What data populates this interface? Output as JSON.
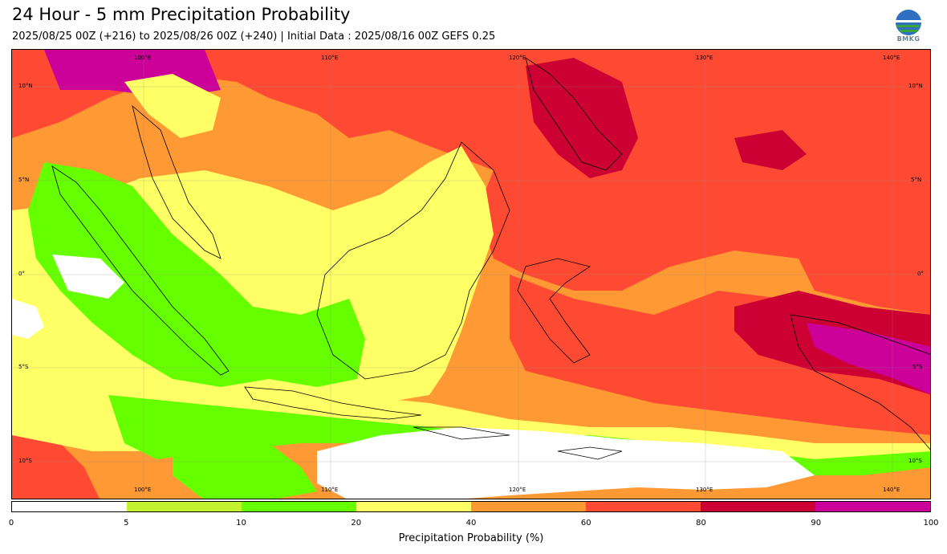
{
  "title": "24 Hour - 5 mm Precipitation Probability",
  "subtitle": "2025/08/25 00Z (+216) to 2025/08/26 00Z (+240) | Initial Data : 2025/08/16 00Z GEFS 0.25",
  "logo": {
    "text": "BMKG",
    "icon": "bmkg-logo-icon"
  },
  "map": {
    "lon_labels": [
      "100°E",
      "110°E",
      "120°E",
      "130°E",
      "140°E"
    ],
    "lat_labels": [
      "10°N",
      "5°N",
      "0°",
      "5°S",
      "10°S"
    ]
  },
  "colorbar": {
    "label": "Precipitation Probability (%)",
    "ticks": [
      "0",
      "5",
      "10",
      "20",
      "40",
      "60",
      "80",
      "90",
      "100"
    ],
    "colors": [
      "#ffffff",
      "#c2f230",
      "#66ff00",
      "#ffff66",
      "#ff9933",
      "#ff4a33",
      "#cc0033",
      "#cc0099"
    ]
  }
}
